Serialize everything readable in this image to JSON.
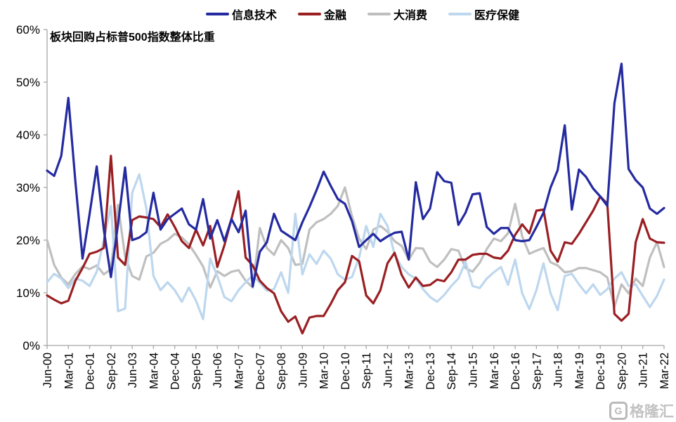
{
  "chart_data": {
    "type": "line",
    "title": "板块回购占标普500指数整体比重",
    "grid": false,
    "legend_position": "top",
    "ylim": [
      0,
      60
    ],
    "y_tick_labels": [
      "0%",
      "10%",
      "20%",
      "30%",
      "40%",
      "50%",
      "60%"
    ],
    "x_tick_step": 3,
    "n_points": 88,
    "x_tick_labels": [
      "Jun-00",
      "Mar-01",
      "Dec-01",
      "Sep-02",
      "Jun-03",
      "Mar-04",
      "Dec-04",
      "Sep-05",
      "Jun-06",
      "Mar-07",
      "Dec-07",
      "Sep-08",
      "Jun-09",
      "Mar-10",
      "Dec-10",
      "Sep-11",
      "Jun-12",
      "Mar-13",
      "Dec-13",
      "Sep-14",
      "Jun-15",
      "Mar-16",
      "Dec-16",
      "Sep-17",
      "Jun-18",
      "Mar-19",
      "Dec-19",
      "Sep-20",
      "Jun-21",
      "Mar-22"
    ],
    "series": [
      {
        "name": "信息技术",
        "color": "#242aa0",
        "values": [
          33.2,
          32.2,
          36,
          47,
          31,
          16.5,
          25,
          34,
          22,
          13,
          23,
          33.8,
          20,
          20.5,
          21.5,
          29,
          22,
          24,
          25,
          26,
          23,
          22,
          27.8,
          20.3,
          23.8,
          19.8,
          24,
          21.5,
          25.6,
          11.2,
          17.8,
          19.6,
          25,
          21.8,
          20.9,
          20,
          23.4,
          26.3,
          29.5,
          33,
          30.3,
          27.8,
          26.9,
          23.6,
          18.7,
          20,
          21.2,
          19.8,
          20.7,
          21.4,
          21.6,
          16.3,
          31,
          24,
          26,
          32.9,
          31.2,
          30.9,
          22.9,
          25.2,
          28.7,
          28.9,
          22.5,
          21.2,
          22.3,
          22.3,
          20,
          19.8,
          20,
          22.5,
          25.2,
          30,
          33.3,
          41.8,
          25.8,
          33.4,
          32,
          29.8,
          28.3,
          26.5,
          46,
          53.5,
          33.5,
          31.4,
          30,
          26,
          25,
          26.1
        ]
      },
      {
        "name": "金融",
        "color": "#9a1f23",
        "values": [
          9.5,
          8.7,
          8,
          8.5,
          12.3,
          14.7,
          17.4,
          17.8,
          18.5,
          36,
          16.7,
          15.3,
          23.8,
          24.5,
          24.3,
          24,
          22.5,
          24.9,
          22.5,
          19.8,
          18.5,
          22,
          19,
          22.7,
          14.9,
          19,
          24,
          29.3,
          16.7,
          15.2,
          12.3,
          10.9,
          9.9,
          6.5,
          4.5,
          5.5,
          2.3,
          5.3,
          5.6,
          5.6,
          7.9,
          10.5,
          12,
          17,
          16,
          9.5,
          8,
          10.5,
          15.6,
          17.6,
          13.4,
          11,
          12.9,
          11.3,
          11.5,
          12.5,
          12.2,
          13.9,
          16.3,
          16.3,
          17.2,
          17.4,
          17.4,
          16.7,
          16.5,
          18,
          21,
          23,
          21.3,
          25.6,
          25.8,
          18,
          15.9,
          19.6,
          19.3,
          21.2,
          23.4,
          25.6,
          28.3,
          26.9,
          6,
          4.7,
          6,
          19.6,
          24,
          20.3,
          19.6,
          19.5
        ]
      },
      {
        "name": "大消费",
        "color": "#bfbfbf",
        "values": [
          20,
          15.3,
          12.9,
          11.6,
          13.6,
          15,
          14.5,
          15.2,
          13.5,
          14.5,
          26.7,
          16.9,
          13.2,
          12.5,
          16.9,
          17.6,
          19.3,
          20,
          21.2,
          20.5,
          19.2,
          17.2,
          15,
          11,
          14.1,
          13.2,
          14,
          14.3,
          12.3,
          11,
          22.3,
          18.5,
          17.2,
          20,
          18.5,
          15.3,
          15.5,
          22,
          23.4,
          24,
          25,
          26.5,
          30,
          24.5,
          20.3,
          18.3,
          22,
          22.7,
          21.6,
          19.8,
          18.9,
          16.3,
          18.5,
          18.4,
          15.9,
          14.9,
          16.3,
          18.3,
          18,
          14.7,
          14,
          15.7,
          18.3,
          20.3,
          19.8,
          21.3,
          26.9,
          20.7,
          17.4,
          18,
          18.5,
          15.8,
          15.2,
          13.9,
          14.1,
          14.7,
          14.7,
          14.3,
          13.9,
          12.9,
          7.3,
          11.6,
          9.9,
          12.7,
          11.3,
          16.7,
          19.6,
          14.9
        ]
      },
      {
        "name": "医疗保健",
        "color": "#bdd7ee",
        "values": [
          12,
          13.6,
          12.7,
          10.9,
          12.7,
          12.3,
          11.3,
          14,
          20,
          26.5,
          6.5,
          7,
          29,
          32.5,
          26,
          13.2,
          10.5,
          12,
          10.5,
          8.3,
          11,
          8.5,
          5,
          16.5,
          13.2,
          9.2,
          8.4,
          10.5,
          12,
          13.3,
          11.9,
          10.4,
          10.7,
          13.9,
          10,
          25,
          13.5,
          17.3,
          15.5,
          18,
          16.5,
          13.5,
          12.5,
          13,
          16.7,
          22.7,
          18.7,
          25,
          22.7,
          17.3,
          14.9,
          13.5,
          12.7,
          10.7,
          9.2,
          8.3,
          9.6,
          11.3,
          12.7,
          15.9,
          11.3,
          10.9,
          12.7,
          13.9,
          14.9,
          11.5,
          16.3,
          9.9,
          6.9,
          10.5,
          15.6,
          9.9,
          6.7,
          13.2,
          13.6,
          11.6,
          9.9,
          11.6,
          9.6,
          10.7,
          12.7,
          13.9,
          11.3,
          11.6,
          9.4,
          7.3,
          9.4,
          12.5
        ]
      }
    ]
  },
  "watermark": {
    "logo": "G",
    "text": "格隆汇"
  }
}
